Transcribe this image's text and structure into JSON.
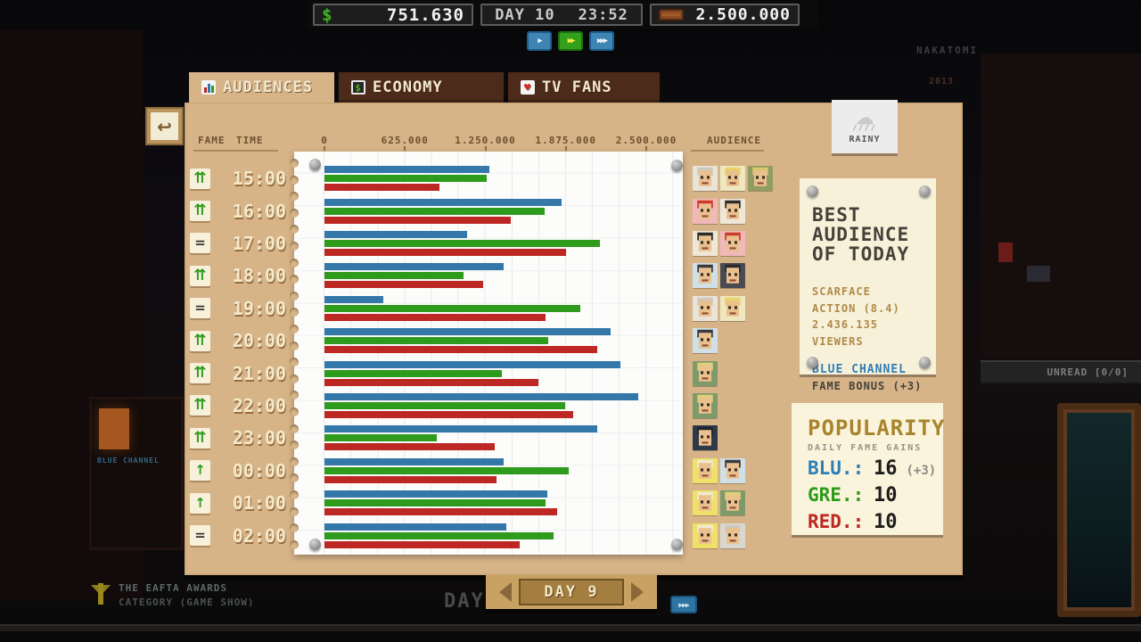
{
  "top_bar": {
    "money": "751.630",
    "day": "DAY 10",
    "time": "23:52",
    "audience_total": "2.500.000"
  },
  "playback": {
    "buttons": [
      {
        "name": "play-button",
        "glyph": "▶",
        "active": false
      },
      {
        "name": "fast-forward-button",
        "glyph": "▶▶",
        "active": true
      },
      {
        "name": "fastest-button",
        "glyph": "▶▶▶",
        "active": false
      }
    ]
  },
  "tabs": [
    {
      "label": "AUDIENCES",
      "active": true
    },
    {
      "label": "ECONOMY",
      "active": false
    },
    {
      "label": "TV FANS",
      "active": false
    }
  ],
  "weather": {
    "label": "RAINY"
  },
  "chart_header": {
    "fame": "FAME",
    "time": "TIME",
    "audience": "AUDIENCE"
  },
  "chart_data": {
    "type": "bar",
    "orientation": "horizontal",
    "xlim": [
      0,
      2500000
    ],
    "axis_ticks": [
      "0",
      "625.000",
      "1.250.000",
      "1.875.000",
      "2.500.000"
    ],
    "grid": true,
    "series_colors": {
      "blue": "#3478aa",
      "green": "#2f9b1d",
      "red": "#bd2724"
    },
    "fame_glyphs": {
      "up2": "⇈",
      "up1": "↑",
      "eq": "="
    },
    "rows": [
      {
        "time": "15:00",
        "fame": "up2",
        "values": {
          "blue": 1280000,
          "green": 1260000,
          "red": 890000
        },
        "faces": [
          {
            "bg": "#e8e4da",
            "hair": "#cfc8bd"
          },
          {
            "bg": "#efe7c0",
            "hair": "#e8d26a"
          },
          {
            "bg": "#8f9d62",
            "hair": "#d8c770"
          }
        ]
      },
      {
        "time": "16:00",
        "fame": "up2",
        "values": {
          "blue": 1840000,
          "green": 1710000,
          "red": 1450000
        },
        "faces": [
          {
            "bg": "#f0b8b8",
            "hair": "#cc3b2a"
          },
          {
            "bg": "#efe7d8",
            "hair": "#2b2b28"
          }
        ]
      },
      {
        "time": "17:00",
        "fame": "eq",
        "values": {
          "blue": 1110000,
          "green": 2140000,
          "red": 1880000
        },
        "faces": [
          {
            "bg": "#efe7d8",
            "hair": "#2b2b28"
          },
          {
            "bg": "#f0b8b8",
            "hair": "#cc3b2a"
          }
        ]
      },
      {
        "time": "18:00",
        "fame": "up2",
        "values": {
          "blue": 1390000,
          "green": 1080000,
          "red": 1230000
        },
        "faces": [
          {
            "bg": "#cfe0e8",
            "hair": "#3a3a40"
          },
          {
            "bg": "#4a4a52",
            "hair": "#2a2a30"
          }
        ]
      },
      {
        "time": "19:00",
        "fame": "eq",
        "values": {
          "blue": 460000,
          "green": 1990000,
          "red": 1720000
        },
        "faces": [
          {
            "bg": "#e8e4da",
            "hair": "#cfc8bd"
          },
          {
            "bg": "#efe7c0",
            "hair": "#e8d26a"
          }
        ]
      },
      {
        "time": "20:00",
        "fame": "up2",
        "values": {
          "blue": 2220000,
          "green": 1740000,
          "red": 2120000
        },
        "faces": [
          {
            "bg": "#cfe0e8",
            "hair": "#3a3a40"
          }
        ]
      },
      {
        "time": "21:00",
        "fame": "up2",
        "values": {
          "blue": 2300000,
          "green": 1380000,
          "red": 1660000
        },
        "faces": [
          {
            "bg": "#7f9a6a",
            "hair": "#e0cf7a"
          }
        ]
      },
      {
        "time": "22:00",
        "fame": "up2",
        "values": {
          "blue": 2436135,
          "green": 1870000,
          "red": 1930000
        },
        "faces": [
          {
            "bg": "#7f9a6a",
            "hair": "#e0cf7a"
          }
        ]
      },
      {
        "time": "23:00",
        "fame": "up2",
        "values": {
          "blue": 2120000,
          "green": 870000,
          "red": 1320000
        },
        "faces": [
          {
            "bg": "#2e3a4a",
            "hair": "#1d2430"
          }
        ]
      },
      {
        "time": "00:00",
        "fame": "up1",
        "values": {
          "blue": 1390000,
          "green": 1900000,
          "red": 1340000
        },
        "faces": [
          {
            "bg": "#efe06a",
            "hair": "#f0ead0"
          },
          {
            "bg": "#cfe0e8",
            "hair": "#3a3a40"
          }
        ]
      },
      {
        "time": "01:00",
        "fame": "up1",
        "values": {
          "blue": 1730000,
          "green": 1720000,
          "red": 1810000
        },
        "faces": [
          {
            "bg": "#efe06a",
            "hair": "#f0ead0"
          },
          {
            "bg": "#7f9a6a",
            "hair": "#e0cf7a"
          }
        ]
      },
      {
        "time": "02:00",
        "fame": "eq",
        "values": {
          "blue": 1410000,
          "green": 1780000,
          "red": 1520000
        },
        "faces": [
          {
            "bg": "#efe06a",
            "hair": "#f0ead0"
          },
          {
            "bg": "#d8d8d0",
            "hair": "#cfc8bd"
          }
        ]
      }
    ]
  },
  "best_audience": {
    "title": "BEST AUDIENCE OF TODAY",
    "show": "SCARFACE",
    "genre_rating": "ACTION (8.4)",
    "viewers": "2.436.135 VIEWERS",
    "channel": "BLUE CHANNEL",
    "bonus": "FAME BONUS (+3)"
  },
  "popularity": {
    "title": "POPULARITY",
    "subtitle": "DAILY FAME GAINS",
    "rows": [
      {
        "label": "BLU.:",
        "value": "16",
        "extra": "(+3)",
        "color": "#2f7fb5"
      },
      {
        "label": "GRE.:",
        "value": "10",
        "extra": "",
        "color": "#2f9b1d"
      },
      {
        "label": "RED.:",
        "value": "10",
        "extra": "",
        "color": "#bd2724"
      }
    ]
  },
  "day_nav": {
    "label": "DAY 9"
  },
  "background": {
    "sign": "NAKATOMI",
    "year": "2013",
    "unread": "UNREAD [0/0]",
    "awards_title": "THE EAFTA AWARDS",
    "awards_subtitle": "CATEGORY (GAME SHOW)",
    "behind_label": "DAY",
    "mini_nav_glyph": "▶▶▶",
    "poster_neon": "BLUE CHANNEL"
  }
}
